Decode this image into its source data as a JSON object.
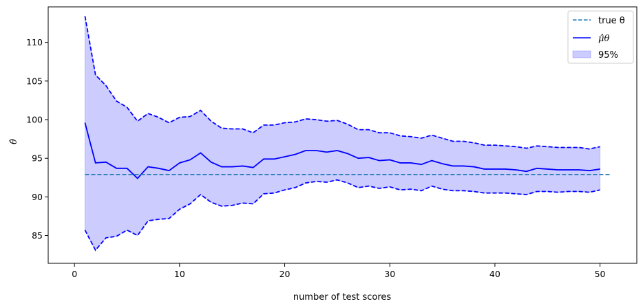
{
  "chart_data": {
    "type": "line",
    "xlabel": "number of test scores",
    "ylabel": "θ̂",
    "xlim": [
      -2.5,
      53.5
    ],
    "ylim": [
      81.4,
      114.6
    ],
    "xticks": [
      0,
      10,
      20,
      30,
      40,
      50
    ],
    "yticks": [
      85,
      90,
      95,
      100,
      105,
      110
    ],
    "grid": false,
    "legend_position": "top-right",
    "true_theta": {
      "value": 92.9,
      "x_range": [
        1,
        51
      ],
      "color": "#1f77b4",
      "style": "dashed"
    },
    "x": [
      1,
      2,
      3,
      4,
      5,
      6,
      7,
      8,
      9,
      10,
      11,
      12,
      13,
      14,
      15,
      16,
      17,
      18,
      19,
      20,
      21,
      22,
      23,
      24,
      25,
      26,
      27,
      28,
      29,
      30,
      31,
      32,
      33,
      34,
      35,
      36,
      37,
      38,
      39,
      40,
      41,
      42,
      43,
      44,
      45,
      46,
      47,
      48,
      49,
      50
    ],
    "mu_hat": [
      99.6,
      94.4,
      94.5,
      93.7,
      93.7,
      92.4,
      93.9,
      93.7,
      93.4,
      94.4,
      94.8,
      95.7,
      94.5,
      93.9,
      93.9,
      94.0,
      93.8,
      94.9,
      94.9,
      95.2,
      95.5,
      96.0,
      96.0,
      95.8,
      96.0,
      95.6,
      95.0,
      95.1,
      94.7,
      94.8,
      94.4,
      94.4,
      94.2,
      94.7,
      94.3,
      94.0,
      94.0,
      93.9,
      93.6,
      93.6,
      93.6,
      93.5,
      93.3,
      93.7,
      93.6,
      93.5,
      93.5,
      93.5,
      93.4,
      93.6
    ],
    "upper": [
      113.4,
      105.8,
      104.4,
      102.4,
      101.6,
      99.8,
      100.8,
      100.3,
      99.6,
      100.3,
      100.4,
      101.2,
      99.8,
      98.9,
      98.8,
      98.8,
      98.3,
      99.3,
      99.3,
      99.6,
      99.7,
      100.1,
      100.0,
      99.8,
      99.9,
      99.4,
      98.7,
      98.7,
      98.3,
      98.3,
      97.9,
      97.8,
      97.6,
      98.0,
      97.6,
      97.2,
      97.2,
      97.0,
      96.7,
      96.7,
      96.6,
      96.5,
      96.3,
      96.6,
      96.5,
      96.4,
      96.4,
      96.4,
      96.2,
      96.5
    ],
    "lower": [
      85.7,
      83.1,
      84.7,
      84.9,
      85.7,
      85.0,
      86.9,
      87.1,
      87.2,
      88.4,
      89.1,
      90.3,
      89.3,
      88.8,
      88.9,
      89.2,
      89.1,
      90.4,
      90.5,
      90.9,
      91.2,
      91.8,
      92.0,
      91.9,
      92.2,
      91.8,
      91.2,
      91.4,
      91.1,
      91.3,
      90.9,
      91.0,
      90.8,
      91.4,
      91.0,
      90.8,
      90.8,
      90.7,
      90.5,
      90.5,
      90.5,
      90.4,
      90.3,
      90.7,
      90.7,
      90.6,
      90.7,
      90.7,
      90.6,
      90.9
    ],
    "series": [
      {
        "name": "true θ",
        "color": "#1f77b4",
        "style": "dashed"
      },
      {
        "name": "μ̂θ",
        "color": "#0000ff",
        "style": "solid"
      },
      {
        "name": "95%",
        "color": "#0000ff",
        "style": "fill",
        "alpha": 0.2
      }
    ]
  }
}
